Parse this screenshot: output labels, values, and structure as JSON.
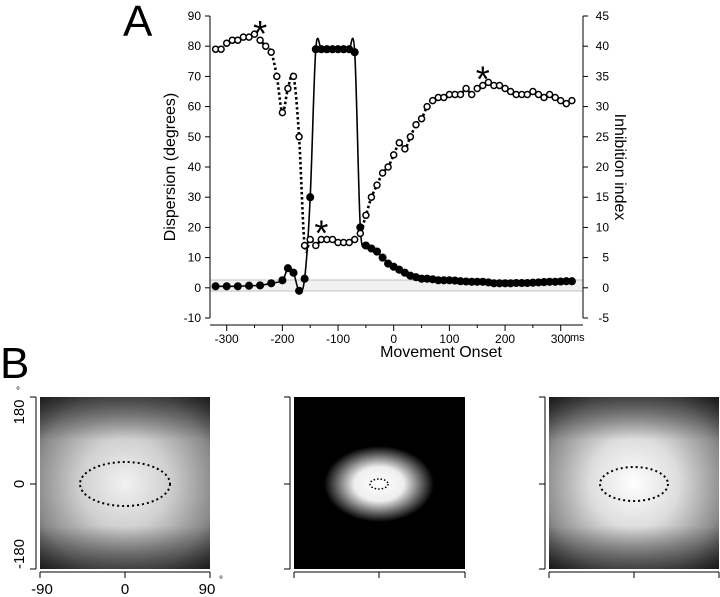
{
  "panel_a": {
    "letter": "A",
    "left_axis_title": "Dispersion (degrees)",
    "right_axis_title": "Inhibition index",
    "x_axis_title": "Movement Onset",
    "x_unit": "ms",
    "left_ticks": [
      "90",
      "80",
      "70",
      "60",
      "50",
      "40",
      "30",
      "20",
      "10",
      "0",
      "-10"
    ],
    "right_ticks": [
      "45",
      "40",
      "35",
      "30",
      "25",
      "20",
      "15",
      "10",
      "5",
      "0",
      "-5"
    ],
    "x_ticks": [
      "-300",
      "-200",
      "-100",
      "0",
      "100",
      "200",
      "300"
    ],
    "star_glyph": "*"
  },
  "panel_b": {
    "letter": "B",
    "y_ticks": [
      "180",
      "0",
      "-180"
    ],
    "x_ticks": [
      "-90",
      "0",
      "90"
    ],
    "degree_symbol": "°"
  },
  "chart_data": {
    "type": "line",
    "xlabel": "Movement Onset",
    "x_unit": "ms",
    "ylabel": "Dispersion (degrees)",
    "y2label": "Inhibition index",
    "xlim": [
      -330,
      340
    ],
    "ylim": [
      -10,
      90
    ],
    "y2lim": [
      -5,
      45
    ],
    "grid": false,
    "series": [
      {
        "axis": "left",
        "style": "solid line, filled circles",
        "x": [
          -320,
          -300,
          -280,
          -260,
          -240,
          -220,
          -200,
          -190,
          -180,
          -170,
          -160,
          -150,
          -140,
          -130,
          -120,
          -110,
          -100,
          -90,
          -80,
          -70,
          -60,
          -50,
          -40,
          -30,
          -20,
          -10,
          0,
          10,
          20,
          30,
          40,
          50,
          60,
          70,
          80,
          90,
          100,
          110,
          120,
          130,
          140,
          150,
          160,
          170,
          180,
          190,
          200,
          210,
          220,
          230,
          240,
          250,
          260,
          270,
          280,
          290,
          300,
          310,
          320
        ],
        "values": [
          0.5,
          0.5,
          0.5,
          0.7,
          0.8,
          1.5,
          2.5,
          6.5,
          5,
          -1,
          3,
          30,
          79,
          79,
          79,
          79,
          79,
          79,
          79,
          78,
          20,
          14,
          13,
          12,
          10,
          8,
          7,
          6,
          5,
          4,
          3.5,
          3,
          3,
          2.8,
          2.5,
          2.5,
          2.5,
          2.4,
          2.2,
          2.1,
          2,
          2,
          2,
          1.8,
          1.5,
          1.5,
          1.5,
          1.5,
          1.6,
          1.6,
          1.6,
          1.7,
          1.8,
          1.9,
          2,
          2,
          2.1,
          2.2,
          2.2
        ]
      },
      {
        "axis": "right",
        "style": "dotted line, open circles",
        "x": [
          -320,
          -310,
          -300,
          -290,
          -280,
          -270,
          -260,
          -250,
          -240,
          -230,
          -220,
          -210,
          -200,
          -190,
          -180,
          -170,
          -160,
          -150,
          -140,
          -130,
          -120,
          -110,
          -100,
          -90,
          -80,
          -70,
          -60,
          -50,
          -40,
          -30,
          -20,
          -10,
          0,
          10,
          20,
          30,
          40,
          50,
          60,
          70,
          80,
          90,
          100,
          110,
          120,
          130,
          140,
          150,
          160,
          170,
          180,
          190,
          200,
          210,
          220,
          230,
          240,
          250,
          260,
          270,
          280,
          290,
          300,
          310,
          320
        ],
        "values": [
          39.5,
          39.5,
          40.5,
          41,
          41,
          41.5,
          41.5,
          42,
          41,
          40,
          39,
          35,
          29,
          33,
          35,
          25,
          7,
          8,
          7,
          8,
          8,
          8,
          7.5,
          7.5,
          7.5,
          8,
          9,
          12,
          15,
          17,
          19,
          20,
          22,
          24,
          23,
          25,
          27,
          28,
          30,
          31,
          31.5,
          31.5,
          32,
          32,
          32,
          33,
          32,
          33,
          33.5,
          34,
          33.5,
          33.5,
          33,
          32.5,
          32,
          32,
          32,
          32.5,
          32,
          31.5,
          32,
          31.5,
          31,
          30.5,
          31
        ]
      }
    ],
    "annotations": [
      {
        "text": "*",
        "x": -240,
        "near_series": "right"
      },
      {
        "text": "*",
        "x": -130,
        "near_series": "right"
      },
      {
        "text": "*",
        "x": 160,
        "near_series": "right"
      }
    ]
  }
}
